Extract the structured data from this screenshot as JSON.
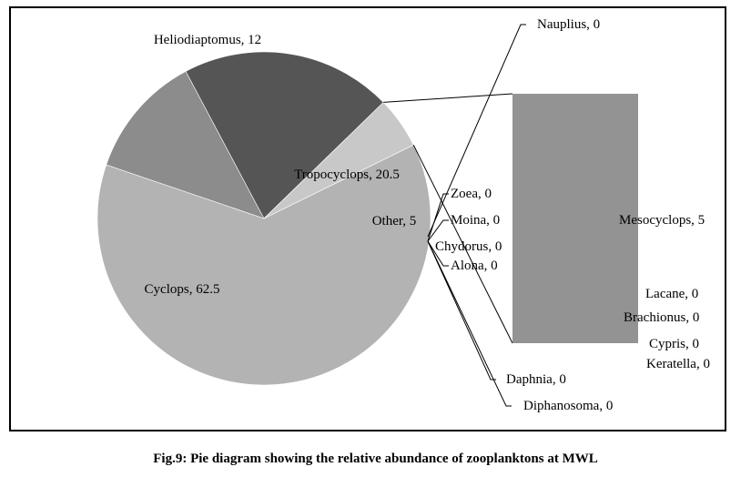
{
  "caption": "Fig.9: Pie diagram showing the relative abundance of zooplanktons at MWL",
  "chart_data": [
    {
      "type": "pie",
      "subtype": "bar-of-pie",
      "title": "",
      "slices": [
        {
          "label": "Cyclops",
          "value": 62.5,
          "text": "Cyclops, 62.5",
          "color": "#b3b3b3"
        },
        {
          "label": "Heliodiaptomus",
          "value": 12,
          "text": "Heliodiaptomus, 12",
          "color": "#8c8c8c"
        },
        {
          "label": "Tropocyclops",
          "value": 20.5,
          "text": "Tropocyclops, 20.5",
          "color": "#555555"
        },
        {
          "label": "Other",
          "value": 5,
          "text": "Other, 5",
          "color": "#c8c8c8"
        }
      ],
      "secondary_bar": {
        "color": "#939393",
        "items": [
          {
            "label": "Nauplius",
            "value": 0,
            "text": "Nauplius, 0"
          },
          {
            "label": "Zoea",
            "value": 0,
            "text": "Zoea, 0"
          },
          {
            "label": "Moina",
            "value": 0,
            "text": "Moina, 0"
          },
          {
            "label": "Chydorus",
            "value": 0,
            "text": "Chydorus, 0"
          },
          {
            "label": "Alona",
            "value": 0,
            "text": "Alona, 0"
          },
          {
            "label": "Mesocyclops",
            "value": 5,
            "text": "Mesocyclops, 5"
          },
          {
            "label": "Lacane",
            "value": 0,
            "text": "Lacane, 0"
          },
          {
            "label": "Brachionus",
            "value": 0,
            "text": "Brachionus, 0"
          },
          {
            "label": "Cypris",
            "value": 0,
            "text": "Cypris, 0"
          },
          {
            "label": "Keratella",
            "value": 0,
            "text": "Keratella, 0"
          },
          {
            "label": "Daphnia",
            "value": 0,
            "text": "Daphnia, 0"
          },
          {
            "label": "Diphanosoma",
            "value": 0,
            "text": "Diphanosoma, 0"
          }
        ]
      }
    }
  ]
}
